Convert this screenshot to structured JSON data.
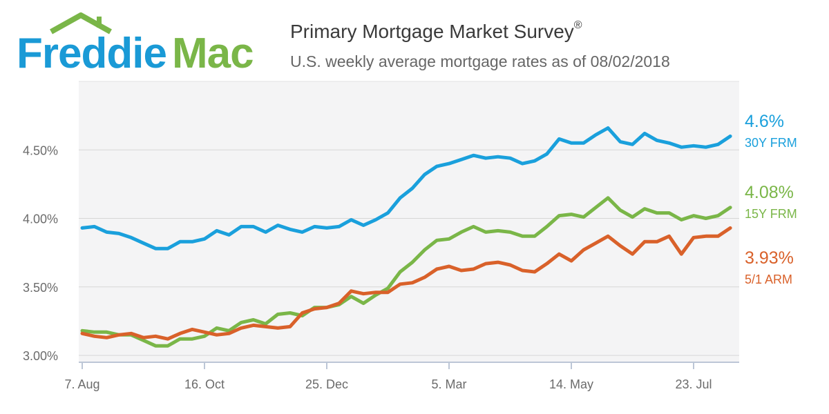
{
  "brand": {
    "logo_text_1": "Freddie",
    "logo_text_2": "Mac",
    "blue": "#1a9ad6",
    "green": "#7ab648"
  },
  "header": {
    "title": "Primary Mortgage Market Survey",
    "title_mark": "®",
    "subtitle": "U.S. weekly average mortgage rates as of 08/02/2018"
  },
  "chart_data": {
    "type": "line",
    "title": "Primary Mortgage Market Survey",
    "subtitle": "U.S. weekly average mortgage rates as of 08/02/2018",
    "x_tick_labels": [
      "7. Aug",
      "16. Oct",
      "25. Dec",
      "5. Mar",
      "14. May",
      "23. Jul"
    ],
    "x_tick_index": [
      0,
      10,
      20,
      30,
      40,
      50
    ],
    "y_tick_labels": [
      "3.00%",
      "3.50%",
      "4.00%",
      "4.50%"
    ],
    "y_ticks": [
      3.0,
      3.5,
      4.0,
      4.5
    ],
    "ylim": [
      2.95,
      5.0
    ],
    "grid": true,
    "legend": "right end labels",
    "series": [
      {
        "name": "30Y FRM",
        "end_label": "4.6%",
        "color": "#1aa0dc",
        "values": [
          3.93,
          3.94,
          3.9,
          3.89,
          3.86,
          3.82,
          3.78,
          3.78,
          3.83,
          3.83,
          3.85,
          3.91,
          3.88,
          3.94,
          3.94,
          3.9,
          3.95,
          3.92,
          3.9,
          3.94,
          3.93,
          3.94,
          3.99,
          3.95,
          3.99,
          4.04,
          4.15,
          4.22,
          4.32,
          4.38,
          4.4,
          4.43,
          4.46,
          4.44,
          4.45,
          4.44,
          4.4,
          4.42,
          4.47,
          4.58,
          4.55,
          4.55,
          4.61,
          4.66,
          4.56,
          4.54,
          4.62,
          4.57,
          4.55,
          4.52,
          4.53,
          4.52,
          4.54,
          4.6
        ]
      },
      {
        "name": "15Y FRM",
        "end_label": "4.08%",
        "color": "#7ab648",
        "values": [
          3.18,
          3.17,
          3.17,
          3.15,
          3.15,
          3.11,
          3.07,
          3.07,
          3.12,
          3.12,
          3.14,
          3.2,
          3.18,
          3.24,
          3.26,
          3.23,
          3.3,
          3.31,
          3.29,
          3.35,
          3.35,
          3.37,
          3.43,
          3.38,
          3.44,
          3.49,
          3.61,
          3.68,
          3.77,
          3.84,
          3.85,
          3.9,
          3.94,
          3.9,
          3.91,
          3.9,
          3.87,
          3.87,
          3.94,
          4.02,
          4.03,
          4.01,
          4.08,
          4.15,
          4.06,
          4.01,
          4.07,
          4.04,
          4.04,
          3.99,
          4.02,
          4.0,
          4.02,
          4.08
        ]
      },
      {
        "name": "5/1 ARM",
        "end_label": "3.93%",
        "color": "#d9612a",
        "values": [
          3.16,
          3.14,
          3.13,
          3.15,
          3.16,
          3.13,
          3.14,
          3.12,
          3.16,
          3.19,
          3.17,
          3.15,
          3.16,
          3.2,
          3.22,
          3.21,
          3.2,
          3.21,
          3.31,
          3.34,
          3.35,
          3.38,
          3.47,
          3.45,
          3.46,
          3.46,
          3.52,
          3.53,
          3.57,
          3.63,
          3.65,
          3.62,
          3.63,
          3.67,
          3.68,
          3.66,
          3.62,
          3.61,
          3.67,
          3.74,
          3.69,
          3.77,
          3.82,
          3.87,
          3.8,
          3.74,
          3.83,
          3.83,
          3.87,
          3.74,
          3.86,
          3.87,
          3.87,
          3.93
        ]
      }
    ]
  }
}
